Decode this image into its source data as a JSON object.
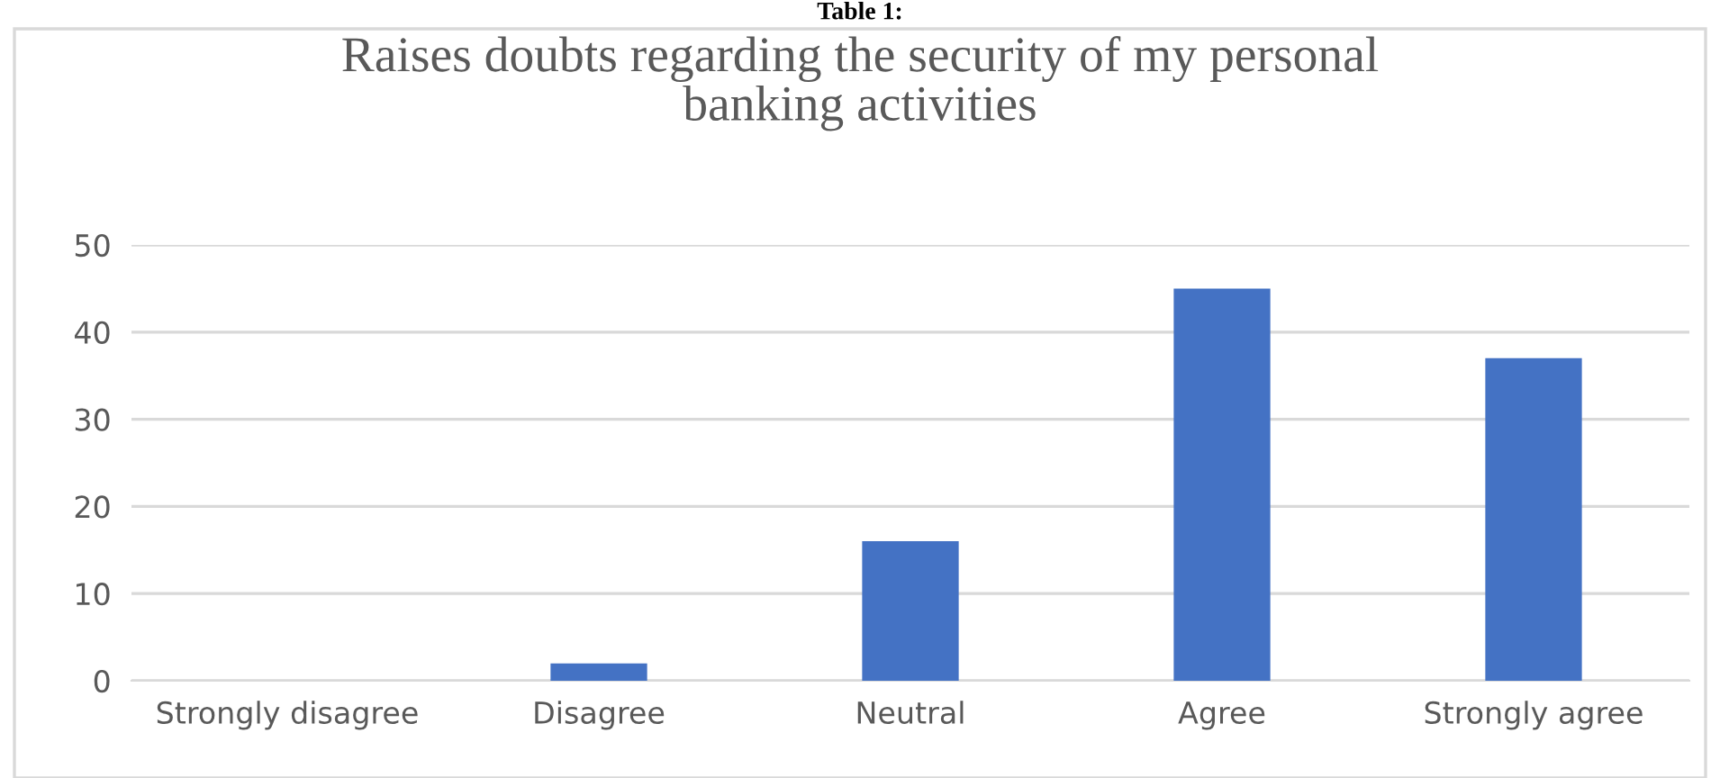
{
  "chart_data": {
    "type": "bar",
    "title": "Raises doubts regarding the security of my personal\nbanking activities",
    "annotations": [
      "Table 1:"
    ],
    "categories": [
      "Strongly disagree",
      "Disagree",
      "Neutral",
      "Agree",
      "Strongly agree"
    ],
    "values": [
      0,
      2,
      16,
      45,
      37
    ],
    "color": "#4472c4",
    "ylim": [
      0,
      50
    ],
    "yticks": [
      0,
      10,
      20,
      30,
      40,
      50
    ],
    "grid": "y",
    "legend": false
  }
}
